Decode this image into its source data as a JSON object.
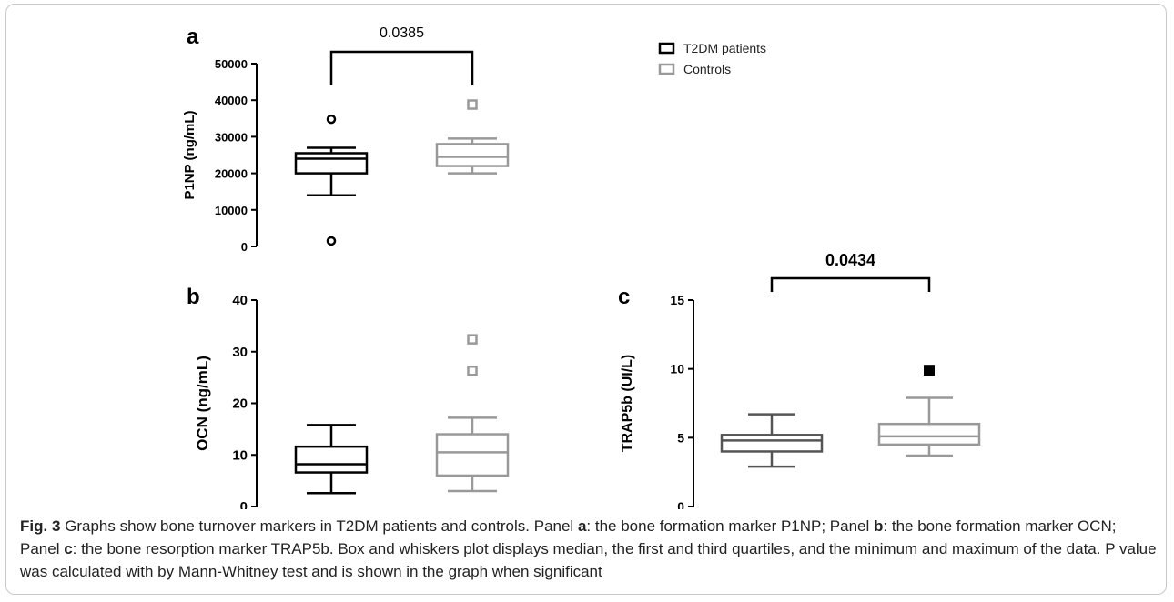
{
  "chart_data": [
    {
      "type": "box",
      "panel_letter": "a",
      "ylabel": "P1NP (ng/mL)",
      "ylim": [
        0,
        50000
      ],
      "yticks": [
        "0",
        "10000",
        "20000",
        "30000",
        "40000",
        "50000"
      ],
      "p_value": "0.0385",
      "series": [
        {
          "name": "T2DM patients",
          "color": "#000000",
          "min": 14000,
          "q1": 20000,
          "median": 24000,
          "q3": 25500,
          "max": 27000,
          "outliers": [
            34800,
            1500
          ],
          "marker": "circle"
        },
        {
          "name": "Controls",
          "color": "#999999",
          "min": 20000,
          "q1": 22000,
          "median": 24500,
          "q3": 28000,
          "max": 29500,
          "outliers": [
            38800
          ],
          "marker": "square-open"
        }
      ]
    },
    {
      "type": "box",
      "panel_letter": "b",
      "ylabel": "OCN (ng/mL)",
      "ylim": [
        0,
        40
      ],
      "yticks": [
        "0",
        "10",
        "20",
        "30",
        "40"
      ],
      "series": [
        {
          "name": "T2DM patients",
          "color": "#000000",
          "min": 2.6,
          "q1": 6.6,
          "median": 8.2,
          "q3": 11.6,
          "max": 15.8,
          "outliers": [],
          "marker": "circle"
        },
        {
          "name": "Controls",
          "color": "#999999",
          "min": 3.0,
          "q1": 6.0,
          "median": 10.5,
          "q3": 14.0,
          "max": 17.2,
          "outliers": [
            32.4,
            26.3
          ],
          "marker": "square-open"
        }
      ]
    },
    {
      "type": "box",
      "panel_letter": "c",
      "ylabel": "TRAP5b (UI/L)",
      "ylim": [
        0,
        15
      ],
      "yticks": [
        "0",
        "5",
        "10",
        "15"
      ],
      "p_value": "0.0434",
      "series": [
        {
          "name": "T2DM patients",
          "color": "#555555",
          "min": 2.9,
          "q1": 4.0,
          "median": 4.8,
          "q3": 5.2,
          "max": 6.7,
          "outliers": [],
          "marker": "circle"
        },
        {
          "name": "Controls",
          "color": "#999999",
          "min": 3.7,
          "q1": 4.5,
          "median": 5.1,
          "q3": 6.0,
          "max": 7.9,
          "outliers": [
            9.9
          ],
          "marker": "square-filled"
        }
      ]
    }
  ],
  "legend": {
    "items": [
      {
        "label": "T2DM patients",
        "color": "#000000"
      },
      {
        "label": "Controls",
        "color": "#999999"
      }
    ]
  },
  "caption": {
    "fig_label": "Fig. 3",
    "text1": " Graphs show bone turnover markers in T2DM patients and controls. Panel ",
    "a": "a",
    "text2": ": the bone formation marker P1NP; Panel ",
    "b": "b",
    "text3": ": the bone formation marker OCN; Panel ",
    "c": "c",
    "text4": ": the bone resorption marker TRAP5b. Box and whiskers plot displays median, the first and third quartiles, and the minimum and maximum of the data. P value was calculated with by Mann-Whitney test and is shown in the graph when significant"
  }
}
